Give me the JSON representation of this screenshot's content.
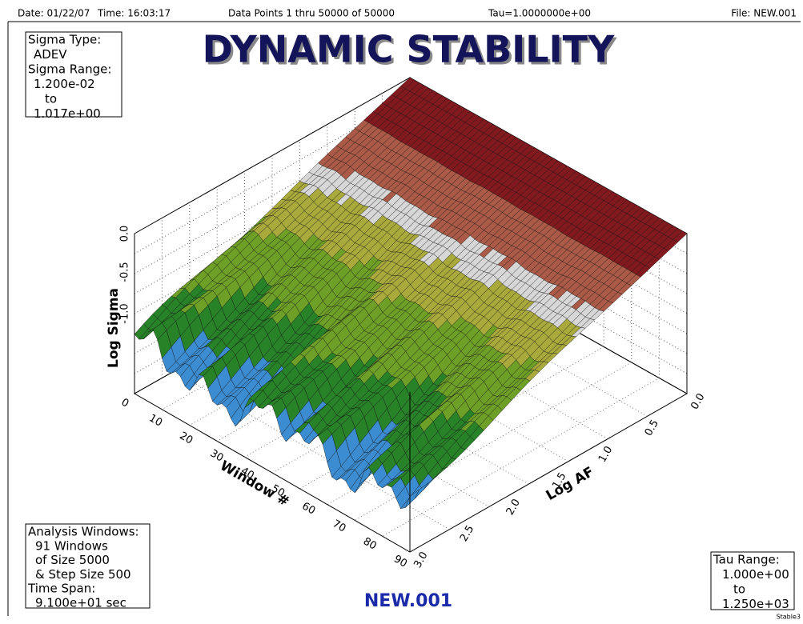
{
  "header": {
    "date": "Date: 01/22/07",
    "time": "Time: 16:03:17",
    "points": "Data Points 1 thru 50000  of 50000",
    "tau": "Tau=1.0000000e+00",
    "file": "File: NEW.001"
  },
  "title": "DYNAMIC STABILITY",
  "sigma_box": [
    "Sigma Type:",
    "ADEV",
    "Sigma Range:",
    "1.200e-02",
    "to",
    "1.017e+00"
  ],
  "windows_box": [
    "Analysis Windows:",
    "91 Windows",
    "of Size 5000",
    "& Step Size 500",
    "Time Span:",
    "9.100e+01 sec"
  ],
  "tau_box": [
    "Tau Range:",
    "1.000e+00",
    "to",
    "1.250e+03"
  ],
  "axes": {
    "z_label": "Log Sigma",
    "z_ticks": [
      "0.0",
      "-0.5",
      "-1.0"
    ],
    "x_label": "Window #",
    "x_ticks": [
      "0",
      "10",
      "20",
      "30",
      "40",
      "50",
      "60",
      "70",
      "80",
      "90"
    ],
    "y_label": "Log AF",
    "y_ticks": [
      "0.0",
      "0.5",
      "1.0",
      "1.5",
      "2.0",
      "2.5",
      "3.0"
    ]
  },
  "footer": "NEW.001",
  "corner": "Stable3"
}
